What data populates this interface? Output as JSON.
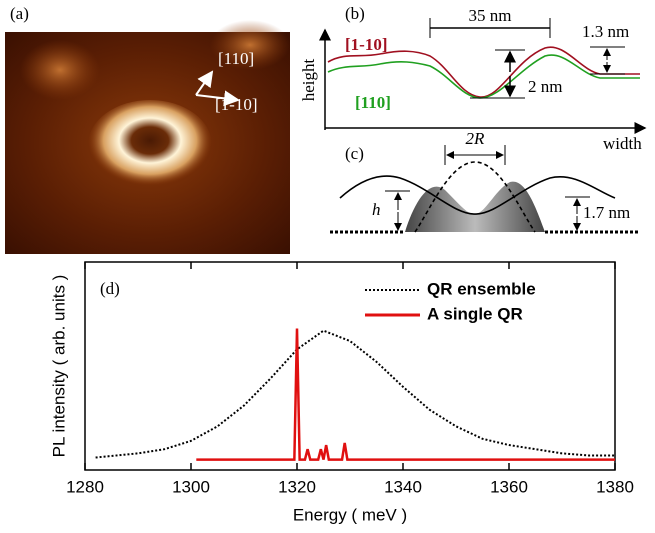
{
  "figure": {
    "a": {
      "label": "(a)",
      "directions": [
        "[110]",
        "[1-10]"
      ]
    },
    "b": {
      "label": "(b)",
      "ylabel": "height",
      "xlabel": "width",
      "series_labels": [
        "[1-10]",
        "[110]"
      ],
      "annotations": [
        "35 nm",
        "2 nm",
        "1.3 nm"
      ]
    },
    "c": {
      "label": "(c)",
      "annotations": [
        "2R",
        "h",
        "1.7 nm"
      ]
    }
  },
  "chart_data": {
    "type": "line",
    "panel_label": "(d)",
    "xlabel": "Energy ( meV )",
    "ylabel": "PL intensity ( arb. units )",
    "xlim": [
      1280,
      1380
    ],
    "xticks": [
      1280,
      1300,
      1320,
      1340,
      1360,
      1380
    ],
    "ylim": [
      0,
      1
    ],
    "legend": "upper right",
    "series": [
      {
        "name": "QR ensemble",
        "color": "#000000",
        "style": "dotted",
        "x": [
          1282,
          1290,
          1295,
          1300,
          1305,
          1310,
          1315,
          1320,
          1325,
          1330,
          1335,
          1340,
          1345,
          1350,
          1355,
          1360,
          1365,
          1370,
          1375,
          1380
        ],
        "values": [
          0.06,
          0.08,
          0.1,
          0.14,
          0.21,
          0.31,
          0.44,
          0.58,
          0.67,
          0.62,
          0.52,
          0.4,
          0.29,
          0.21,
          0.15,
          0.12,
          0.1,
          0.08,
          0.07,
          0.07
        ]
      },
      {
        "name": "A single QR",
        "color": "#e01010",
        "style": "solid",
        "x": [
          1301,
          1319.5,
          1320,
          1320.5,
          1321.5,
          1322,
          1322.5,
          1324,
          1324.5,
          1325,
          1325.5,
          1326,
          1328.5,
          1329,
          1329.5,
          1380
        ],
        "values": [
          0.05,
          0.05,
          0.68,
          0.05,
          0.05,
          0.1,
          0.05,
          0.05,
          0.1,
          0.05,
          0.12,
          0.05,
          0.05,
          0.13,
          0.05,
          0.05
        ]
      }
    ]
  }
}
